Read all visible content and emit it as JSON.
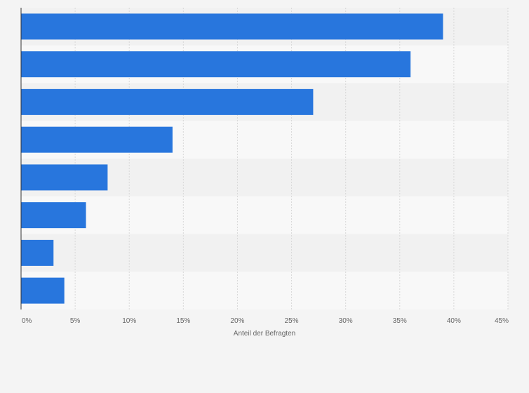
{
  "chart_data": {
    "type": "bar",
    "orientation": "horizontal",
    "categories": [
      "",
      "",
      "",
      "",
      "",
      "",
      "",
      ""
    ],
    "values": [
      39,
      36,
      27,
      14,
      8,
      6,
      3,
      4
    ],
    "xlabel": "Anteil der Befragten",
    "ylabel": "",
    "xlim": [
      0,
      45
    ],
    "xticks": [
      0,
      5,
      10,
      15,
      20,
      25,
      30,
      35,
      40,
      45
    ],
    "tick_labels": [
      "0%",
      "5%",
      "10%",
      "15%",
      "20%",
      "25%",
      "30%",
      "35%",
      "40%",
      "45%"
    ],
    "grid": "vertical dashed",
    "legend": "none",
    "colors": {
      "bar": "#2876dd",
      "band_dark": "#f1f1f1",
      "band_light": "#f8f8f8",
      "grid": "#d8d8d8",
      "axis": "#333333"
    }
  }
}
